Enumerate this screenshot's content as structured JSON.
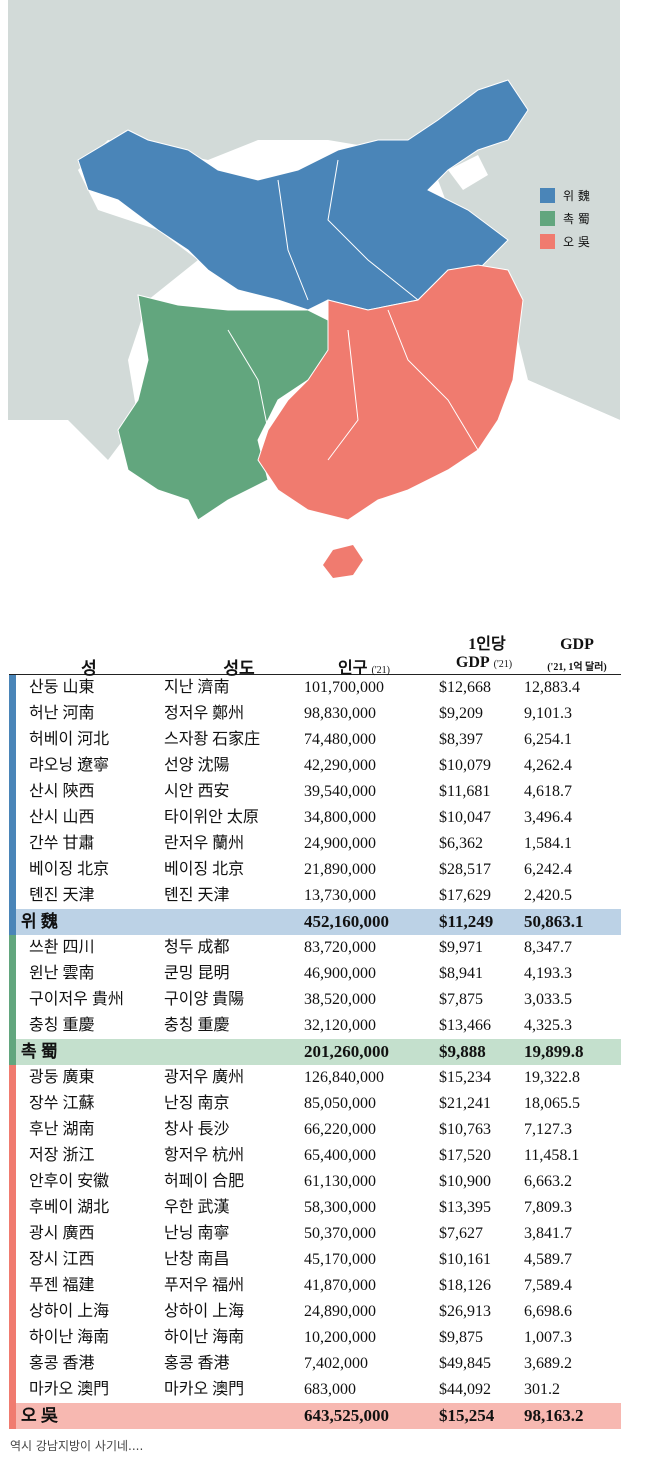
{
  "colors": {
    "wei": "#4a85b8",
    "shu": "#62a67e",
    "wu": "#f07b6f",
    "neutral": "#d2dad8",
    "wei_total_bg": "#bcd2e6",
    "shu_total_bg": "#c4e0cd",
    "wu_total_bg": "#f7b8b1"
  },
  "legend": {
    "items": [
      {
        "label": "위 魏",
        "color": "#4a85b8"
      },
      {
        "label": "촉 蜀",
        "color": "#62a67e"
      },
      {
        "label": "오 吳",
        "color": "#f07b6f"
      }
    ]
  },
  "table": {
    "headers": {
      "province": "성",
      "capital": "성도",
      "population": "인구",
      "population_year": "('21)",
      "gdp_per_capita_top": "1인당",
      "gdp_per_capita": "GDP",
      "gdp_per_capita_year": "('21)",
      "gdp": "GDP",
      "gdp_unit": "('21, 1억 달러)"
    },
    "groups": [
      {
        "key": "wei",
        "rows": [
          [
            "산둥 山東",
            "지난 濟南",
            "101,700,000",
            "$12,668",
            "12,883.4"
          ],
          [
            "허난 河南",
            "정저우 鄭州",
            "98,830,000",
            "$9,209",
            "9,101.3"
          ],
          [
            "허베이 河北",
            "스자좡 石家庄",
            "74,480,000",
            "$8,397",
            "6,254.1"
          ],
          [
            "랴오닝 遼寧",
            "선양 沈陽",
            "42,290,000",
            "$10,079",
            "4,262.4"
          ],
          [
            "산시 陝西",
            "시안 西安",
            "39,540,000",
            "$11,681",
            "4,618.7"
          ],
          [
            "산시 山西",
            "타이위안 太原",
            "34,800,000",
            "$10,047",
            "3,496.4"
          ],
          [
            "간쑤 甘肅",
            "란저우 蘭州",
            "24,900,000",
            "$6,362",
            "1,584.1"
          ],
          [
            "베이징 北京",
            "베이징 北京",
            "21,890,000",
            "$28,517",
            "6,242.4"
          ],
          [
            "톈진 天津",
            "톈진 天津",
            "13,730,000",
            "$17,629",
            "2,420.5"
          ]
        ],
        "total": [
          "위 魏",
          "",
          "452,160,000",
          "$11,249",
          "50,863.1"
        ]
      },
      {
        "key": "shu",
        "rows": [
          [
            "쓰촨 四川",
            "청두 成都",
            "83,720,000",
            "$9,971",
            "8,347.7"
          ],
          [
            "윈난 雲南",
            "쿤밍 昆明",
            "46,900,000",
            "$8,941",
            "4,193.3"
          ],
          [
            "구이저우 貴州",
            "구이양 貴陽",
            "38,520,000",
            "$7,875",
            "3,033.5"
          ],
          [
            "충칭 重慶",
            "충칭 重慶",
            "32,120,000",
            "$13,466",
            "4,325.3"
          ]
        ],
        "total": [
          "촉 蜀",
          "",
          "201,260,000",
          "$9,888",
          "19,899.8"
        ]
      },
      {
        "key": "wu",
        "rows": [
          [
            "광둥 廣東",
            "광저우 廣州",
            "126,840,000",
            "$15,234",
            "19,322.8"
          ],
          [
            "장쑤 江蘇",
            "난징 南京",
            "85,050,000",
            "$21,241",
            "18,065.5"
          ],
          [
            "후난 湖南",
            "창사 長沙",
            "66,220,000",
            "$10,763",
            "7,127.3"
          ],
          [
            "저장 浙江",
            "항저우 杭州",
            "65,400,000",
            "$17,520",
            "11,458.1"
          ],
          [
            "안후이 安徽",
            "허페이 合肥",
            "61,130,000",
            "$10,900",
            "6,663.2"
          ],
          [
            "후베이 湖北",
            "우한 武漢",
            "58,300,000",
            "$13,395",
            "7,809.3"
          ],
          [
            "광시 廣西",
            "난닝 南寧",
            "50,370,000",
            "$7,627",
            "3,841.7"
          ],
          [
            "장시 江西",
            "난창 南昌",
            "45,170,000",
            "$10,161",
            "4,589.7"
          ],
          [
            "푸젠 福建",
            "푸저우 福州",
            "41,870,000",
            "$18,126",
            "7,589.4"
          ],
          [
            "상하이 上海",
            "상하이 上海",
            "24,890,000",
            "$26,913",
            "6,698.6"
          ],
          [
            "하이난 海南",
            "하이난 海南",
            "10,200,000",
            "$9,875",
            "1,007.3"
          ],
          [
            "홍콩 香港",
            "홍콩 香港",
            "7,402,000",
            "$49,845",
            "3,689.2"
          ],
          [
            "마카오 澳門",
            "마카오 澳門",
            "683,000",
            "$44,092",
            "301.2"
          ]
        ],
        "total": [
          "오 吳",
          "",
          "643,525,000",
          "$15,254",
          "98,163.2"
        ]
      }
    ]
  },
  "caption": "역시 강남지방이 사기네...."
}
